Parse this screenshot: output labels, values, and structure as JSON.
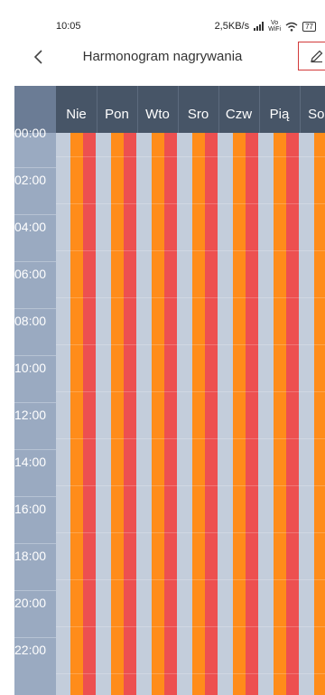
{
  "status_bar": {
    "time": "10:05",
    "network_speed": "2,5KB/s",
    "volte_top": "Vo",
    "volte_bottom": "WiFi",
    "battery": "77"
  },
  "header": {
    "title": "Harmonogram nagrywania"
  },
  "schedule": {
    "days": [
      "Nie",
      "Pon",
      "Wto",
      "Sro",
      "Czw",
      "Pią",
      "Sob"
    ],
    "times": [
      "00:00",
      "02:00",
      "04:00",
      "06:00",
      "08:00",
      "10:00",
      "12:00",
      "14:00",
      "16:00",
      "18:00",
      "20:00",
      "22:00"
    ],
    "colors": {
      "header_bg": "#475567",
      "time_column_bg": "#9aaac1",
      "empty_slot": "#c3cddb",
      "continuous_recording": "#ff8c1a",
      "event_recording": "#ed5050"
    }
  }
}
